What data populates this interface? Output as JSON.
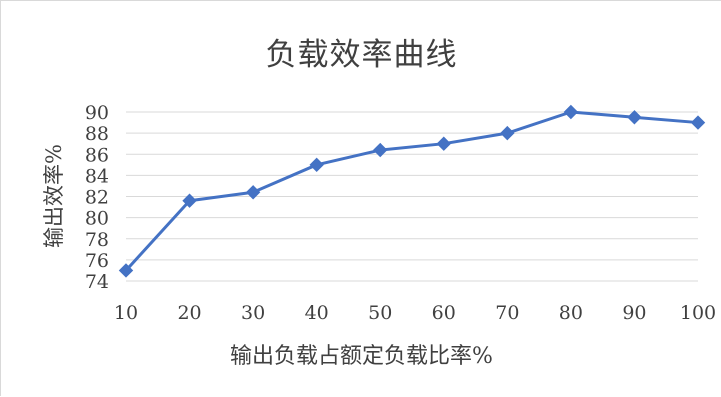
{
  "chart_data": {
    "type": "line",
    "title": "负载效率曲线",
    "xlabel": "输出负载占额定负载比率%",
    "ylabel": "输出效率%",
    "categories": [
      "10",
      "20",
      "30",
      "40",
      "50",
      "60",
      "70",
      "80",
      "90",
      "100"
    ],
    "series": [
      {
        "values": [
          75.0,
          81.6,
          82.4,
          85.0,
          86.4,
          87.0,
          88.0,
          90.0,
          89.5,
          89.0
        ],
        "color": "#4472c4",
        "marker": "diamond"
      }
    ],
    "ylim": [
      74,
      90
    ],
    "yticks": [
      "74",
      "76",
      "78",
      "80",
      "82",
      "84",
      "86",
      "88",
      "90"
    ],
    "grid": true,
    "legend": "none"
  }
}
